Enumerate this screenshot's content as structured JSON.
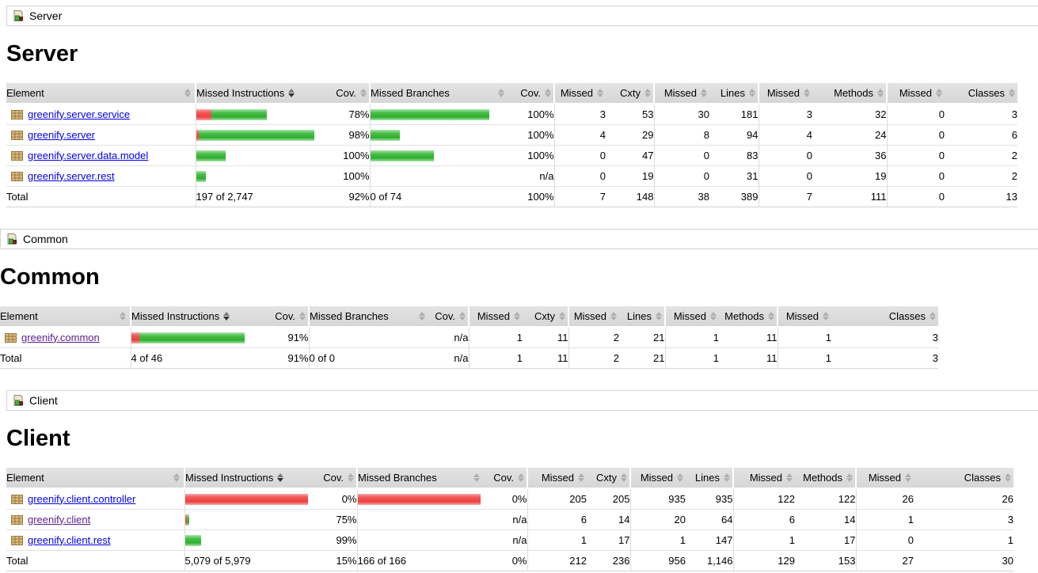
{
  "colors": {
    "bar_green": "#2fae2f",
    "bar_red": "#ee3f3f",
    "link": "#0000e8",
    "link_visited": "#5a1d8e",
    "header_bg": "#dcdcdc"
  },
  "icons": {
    "breadcrumb": "report-icon",
    "package": "package-icon",
    "sort": "sort-arrows-icon"
  },
  "headers": {
    "element": "Element",
    "missed_instructions": "Missed Instructions",
    "cov": "Cov.",
    "missed_branches": "Missed Branches",
    "missed": "Missed",
    "cxty": "Cxty",
    "lines": "Lines",
    "methods": "Methods",
    "classes": "Classes"
  },
  "sections": [
    {
      "breadcrumb": "Server",
      "heading": "Server",
      "table": {
        "rows": [
          {
            "name": "greenify.server.service",
            "visited": false,
            "ins_red": 19,
            "ins_green": 70,
            "ins_cov": "78%",
            "br_red": 0,
            "br_green": 150,
            "br_cov": "100%",
            "m_cxty": "3",
            "cxty": "53",
            "m_lines": "30",
            "lines": "181",
            "m_methods": "3",
            "methods": "32",
            "m_classes": "0",
            "classes": "3"
          },
          {
            "name": "greenify.server",
            "visited": false,
            "ins_red": 3,
            "ins_green": 146,
            "ins_cov": "98%",
            "br_red": 0,
            "br_green": 37,
            "br_cov": "100%",
            "m_cxty": "4",
            "cxty": "29",
            "m_lines": "8",
            "lines": "94",
            "m_methods": "4",
            "methods": "24",
            "m_classes": "0",
            "classes": "6"
          },
          {
            "name": "greenify.server.data.model",
            "visited": false,
            "ins_red": 0,
            "ins_green": 37,
            "ins_cov": "100%",
            "br_red": 0,
            "br_green": 80,
            "br_cov": "100%",
            "m_cxty": "0",
            "cxty": "47",
            "m_lines": "0",
            "lines": "83",
            "m_methods": "0",
            "methods": "36",
            "m_classes": "0",
            "classes": "2"
          },
          {
            "name": "greenify.server.rest",
            "visited": false,
            "ins_red": 0,
            "ins_green": 12,
            "ins_cov": "100%",
            "br_red": 0,
            "br_green": 0,
            "br_cov": "n/a",
            "m_cxty": "0",
            "cxty": "19",
            "m_lines": "0",
            "lines": "31",
            "m_methods": "0",
            "methods": "19",
            "m_classes": "0",
            "classes": "2"
          }
        ],
        "total": {
          "label": "Total",
          "ins": "197 of 2,747",
          "ins_cov": "92%",
          "br": "0 of 74",
          "br_cov": "100%",
          "m_cxty": "7",
          "cxty": "148",
          "m_lines": "38",
          "lines": "389",
          "m_methods": "7",
          "methods": "111",
          "m_classes": "0",
          "classes": "13"
        }
      }
    },
    {
      "breadcrumb": "Common",
      "heading": "Common",
      "table": {
        "rows": [
          {
            "name": "greenify.common",
            "visited": true,
            "ins_red": 10,
            "ins_green": 133,
            "ins_cov": "91%",
            "br_red": 0,
            "br_green": 0,
            "br_cov": "n/a",
            "m_cxty": "1",
            "cxty": "11",
            "m_lines": "2",
            "lines": "21",
            "m_methods": "1",
            "methods": "11",
            "m_classes": "1",
            "classes": "3"
          }
        ],
        "total": {
          "label": "Total",
          "ins": "4 of 46",
          "ins_cov": "91%",
          "br": "0 of 0",
          "br_cov": "n/a",
          "m_cxty": "1",
          "cxty": "11",
          "m_lines": "2",
          "lines": "21",
          "m_methods": "1",
          "methods": "11",
          "m_classes": "1",
          "classes": "3"
        }
      }
    },
    {
      "breadcrumb": "Client",
      "heading": "Client",
      "table": {
        "rows": [
          {
            "name": "greenify.client.controller",
            "visited": false,
            "ins_red": 155,
            "ins_green": 0,
            "ins_cov": "0%",
            "br_red": 155,
            "br_green": 0,
            "br_cov": "0%",
            "m_cxty": "205",
            "cxty": "205",
            "m_lines": "935",
            "lines": "935",
            "m_methods": "122",
            "methods": "122",
            "m_classes": "26",
            "classes": "26"
          },
          {
            "name": "greenify.client",
            "visited": true,
            "ins_red": 2,
            "ins_green": 3,
            "ins_cov": "75%",
            "br_red": 0,
            "br_green": 0,
            "br_cov": "n/a",
            "m_cxty": "6",
            "cxty": "14",
            "m_lines": "20",
            "lines": "64",
            "m_methods": "6",
            "methods": "14",
            "m_classes": "1",
            "classes": "3"
          },
          {
            "name": "greenify.client.rest",
            "visited": false,
            "ins_red": 0,
            "ins_green": 20,
            "ins_cov": "99%",
            "br_red": 0,
            "br_green": 0,
            "br_cov": "n/a",
            "m_cxty": "1",
            "cxty": "17",
            "m_lines": "1",
            "lines": "147",
            "m_methods": "1",
            "methods": "17",
            "m_classes": "0",
            "classes": "1"
          }
        ],
        "total": {
          "label": "Total",
          "ins": "5,079 of 5,979",
          "ins_cov": "15%",
          "br": "166 of 166",
          "br_cov": "0%",
          "m_cxty": "212",
          "cxty": "236",
          "m_lines": "956",
          "lines": "1,146",
          "m_methods": "129",
          "methods": "153",
          "m_classes": "27",
          "classes": "30"
        }
      }
    }
  ]
}
